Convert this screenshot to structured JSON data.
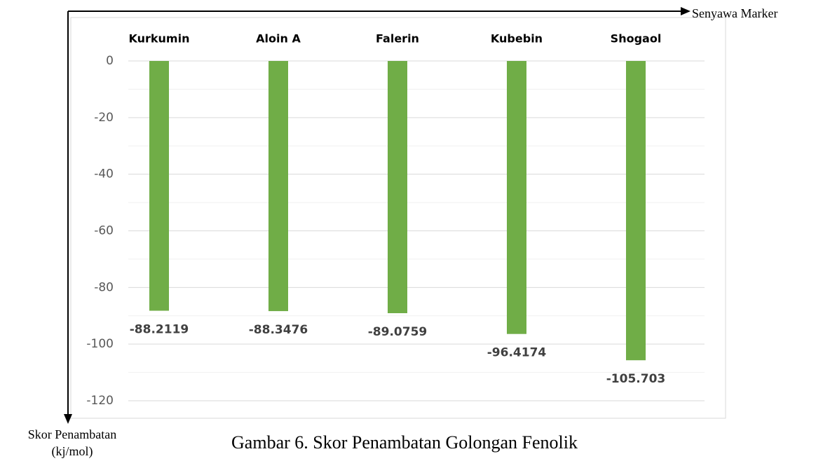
{
  "chart_data": {
    "type": "bar",
    "title": "Gambar 6. Skor Penambatan Golongan Fenolik",
    "x_axis_label": "Senyawa Marker",
    "y_axis_label": [
      "Skor Penambatan",
      "(kj/mol)"
    ],
    "categories": [
      "Kurkumin",
      "Aloin A",
      "Falerin",
      "Kubebin",
      "Shogaol"
    ],
    "values": [
      -88.2119,
      -88.3476,
      -89.0759,
      -96.4174,
      -105.703
    ],
    "color": "#70ad47",
    "ylim": [
      -120,
      0
    ],
    "yticks": [
      0,
      -20,
      -40,
      -60,
      -80,
      -100,
      -120
    ],
    "yminorticks": [
      -10,
      -30,
      -50,
      -70,
      -90,
      -110
    ],
    "grid": true
  }
}
